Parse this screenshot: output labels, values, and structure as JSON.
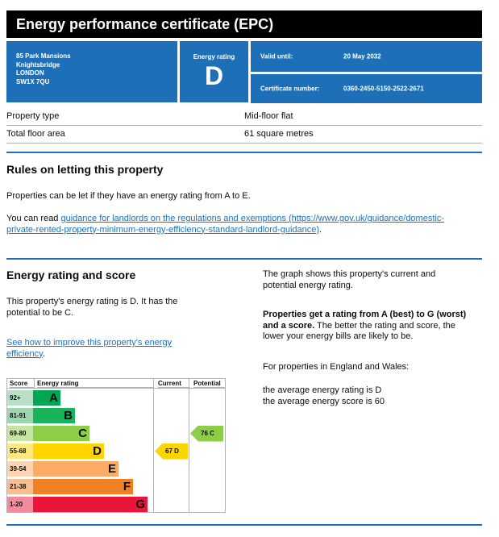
{
  "header": {
    "title": "Energy performance certificate (EPC)",
    "address": [
      "85 Park Mansions",
      "Knightsbridge",
      "LONDON",
      "SW1X 7QU"
    ],
    "rating_label": "Energy rating",
    "rating": "D",
    "valid_until_label": "Valid until:",
    "valid_until": "20 May 2032",
    "cert_label": "Certificate number:",
    "cert_number": "0360-2450-5150-2522-2671"
  },
  "property": {
    "rows": [
      {
        "key": "Property type",
        "value": "Mid-floor flat"
      },
      {
        "key": "Total floor area",
        "value": "61 square metres"
      }
    ]
  },
  "letting": {
    "heading": "Rules on letting this property",
    "para1": "Properties can be let if they have an energy rating from A to E.",
    "para2_prefix": "You can read ",
    "link_line1": "guidance for landlords on the regulations and exemptions (https://www.gov.uk/guidance/domestic-",
    "link_line2": "private-rented-property-minimum-energy-efficiency-standard-landlord-guidance)",
    "para2_suffix": "."
  },
  "rating_section": {
    "heading": "Energy rating and score",
    "current_line1": "This property's energy rating is D. It has the",
    "current_line2": "potential to be C.",
    "improve_line1": "See how to improve this property's energy",
    "improve_line2": "efficiency",
    "improve_suffix": ".",
    "graph_desc_line1": "The graph shows this property's current and",
    "graph_desc_line2": "potential energy rating.",
    "bold_line1": "Properties get a rating from A (best) to G (worst)",
    "bold_line2": "and a score.",
    "rest_line2": " The better the rating and score, the",
    "rest_line3": "lower your energy bills are likely to be.",
    "ew_intro": "For properties in England and Wales:",
    "avg_rating": "the average energy rating is D",
    "avg_score": "the average energy score is 60"
  },
  "graph": {
    "col_score": "Score",
    "col_rating": "Energy rating",
    "col_current": "Current",
    "col_potential": "Potential",
    "bands": [
      {
        "range": "92+",
        "letter": "A",
        "color": "#00a651",
        "score_bg": "#b8e0c9"
      },
      {
        "range": "81-91",
        "letter": "B",
        "color": "#19b459",
        "score_bg": "#9ed6b0"
      },
      {
        "range": "69-80",
        "letter": "C",
        "color": "#8dce46",
        "score_bg": "#c6e5a1"
      },
      {
        "range": "55-68",
        "letter": "D",
        "color": "#ffd500",
        "score_bg": "#ffe97f"
      },
      {
        "range": "39-54",
        "letter": "E",
        "color": "#fcaa65",
        "score_bg": "#fdd4b2"
      },
      {
        "range": "21-38",
        "letter": "F",
        "color": "#ef8023",
        "score_bg": "#f7bf91"
      },
      {
        "range": "1-20",
        "letter": "G",
        "color": "#e9153b",
        "score_bg": "#f48a9d"
      }
    ],
    "current": {
      "label": "67 D",
      "band": 3,
      "color": "#ffd500"
    },
    "potential": {
      "label": "76 C",
      "band": 2,
      "color": "#8dce46"
    }
  }
}
